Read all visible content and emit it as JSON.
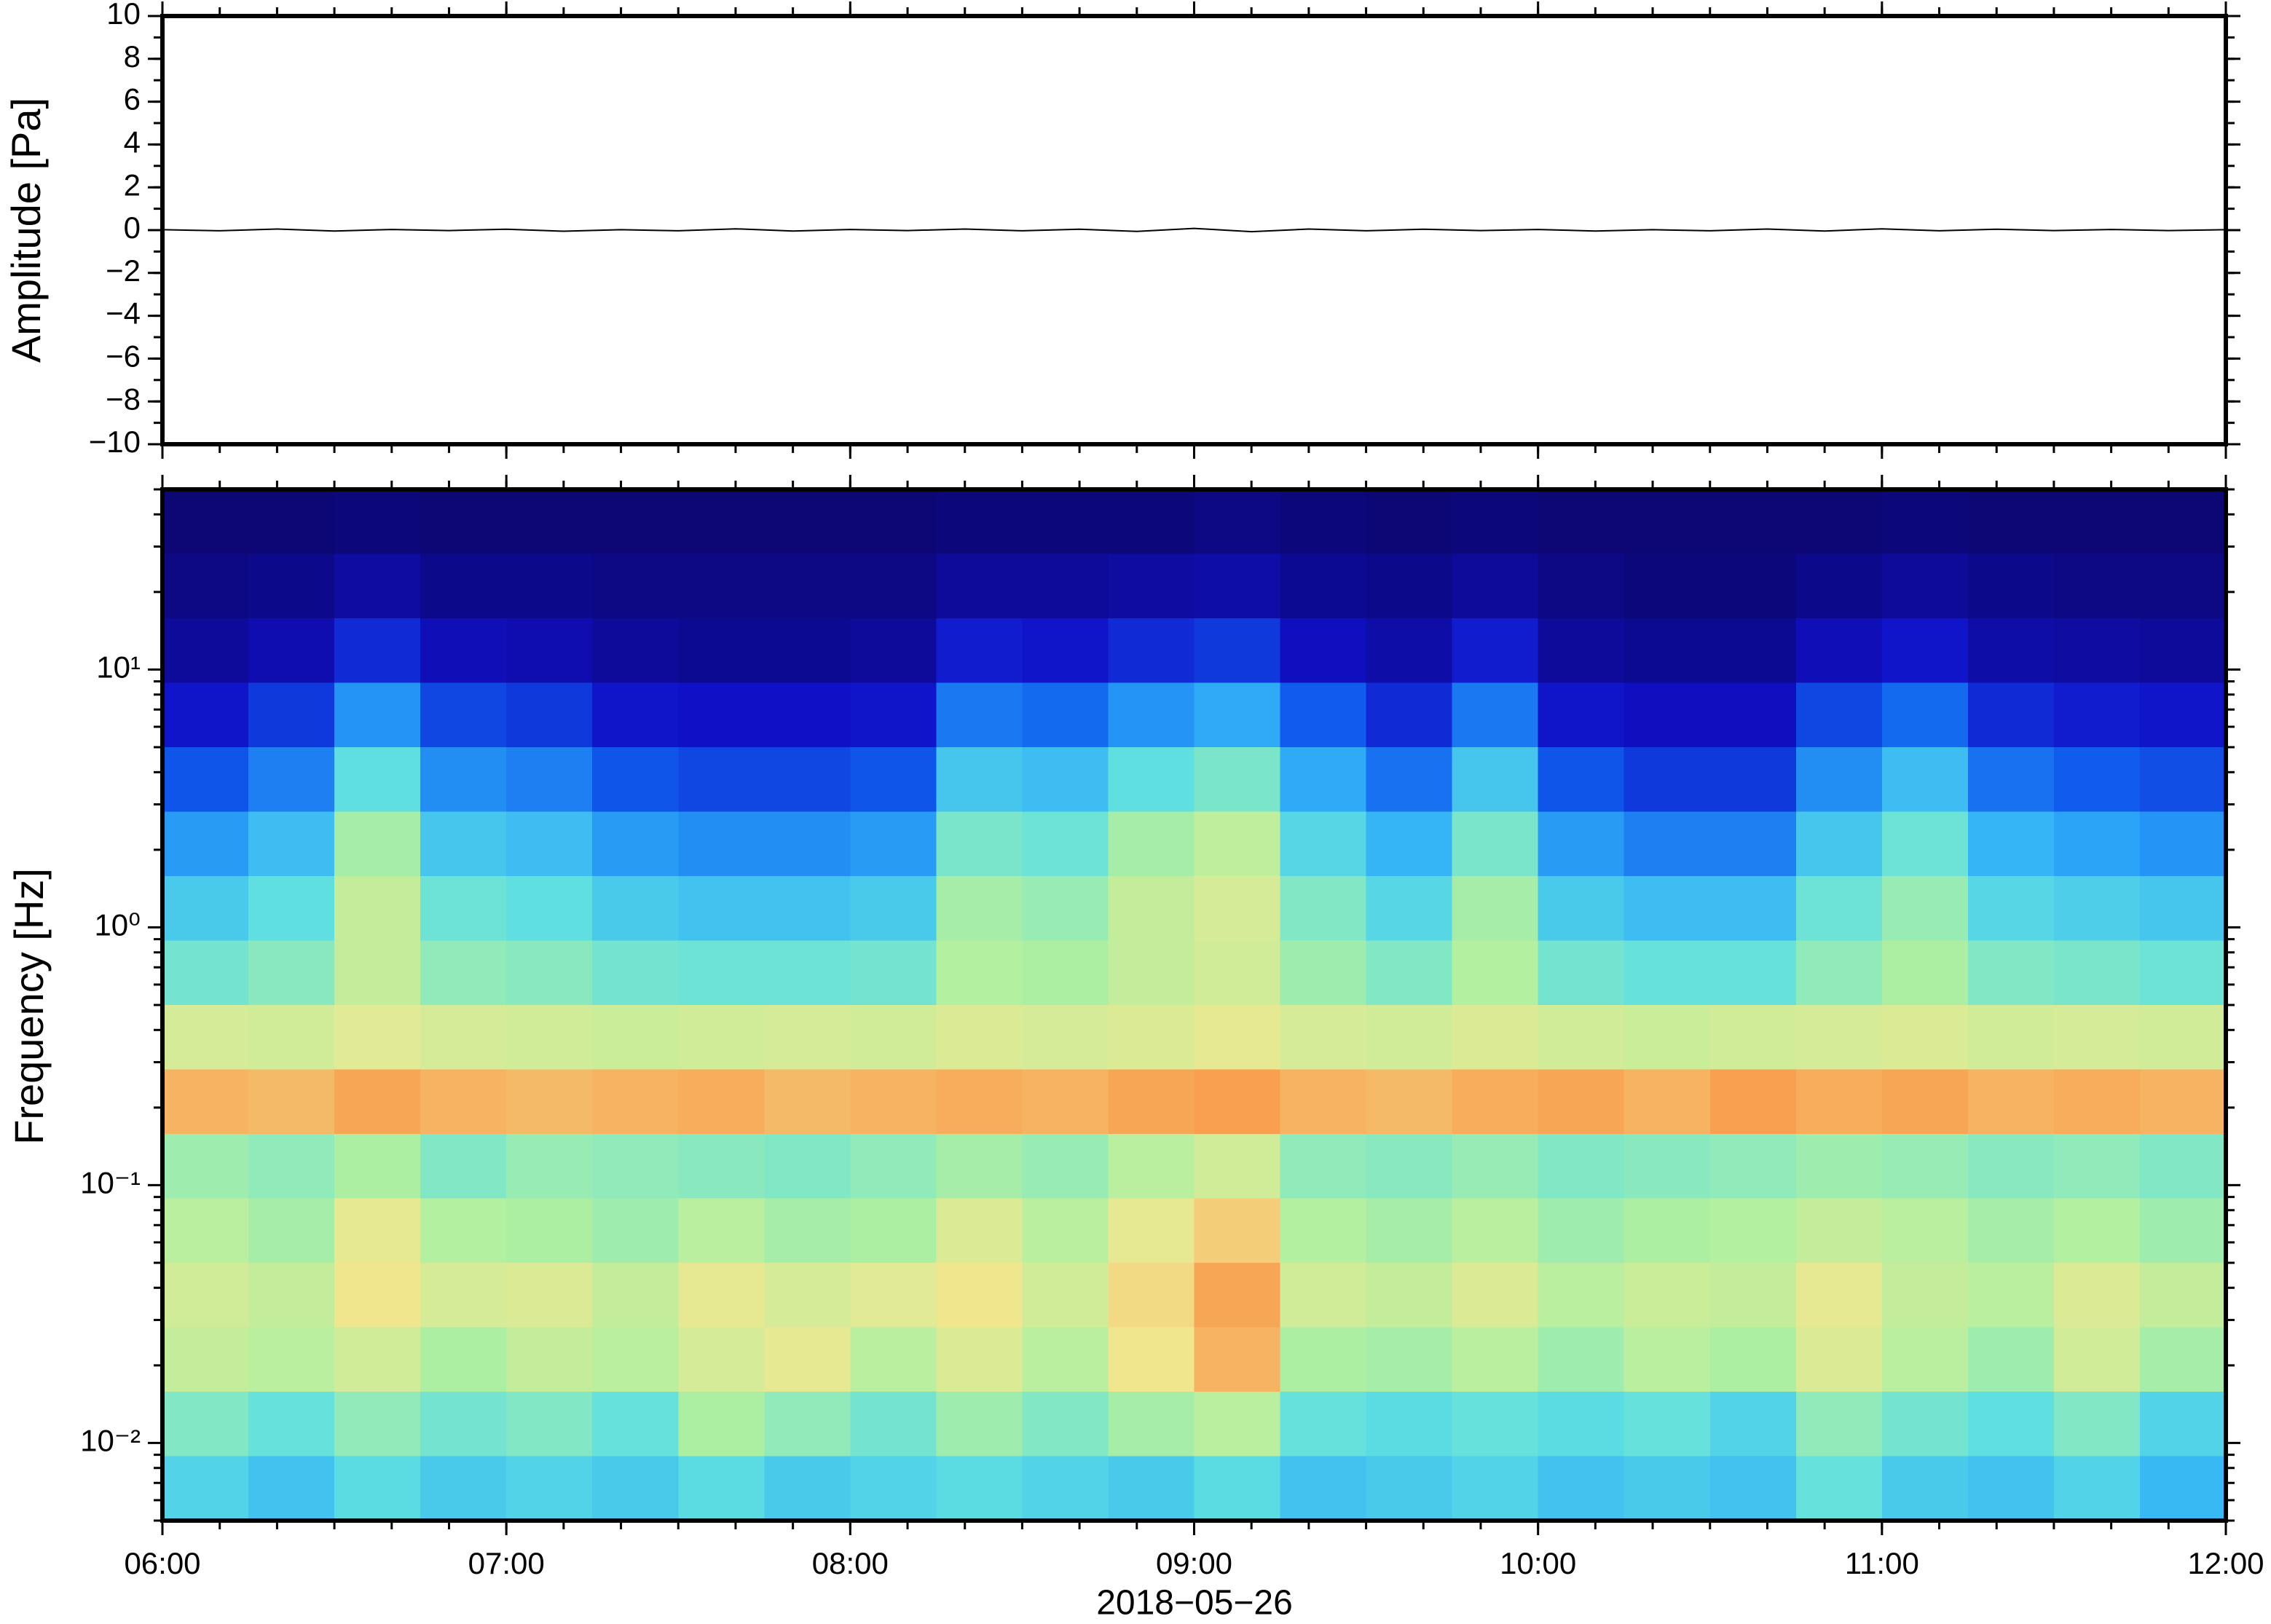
{
  "chart_data": [
    {
      "type": "line",
      "ylabel": "Amplitude [Pa]",
      "color": "#000000",
      "x": [
        "06:00",
        "06:10",
        "06:20",
        "06:30",
        "06:40",
        "06:50",
        "07:00",
        "07:10",
        "07:20",
        "07:30",
        "07:40",
        "07:50",
        "08:00",
        "08:10",
        "08:20",
        "08:30",
        "08:40",
        "08:50",
        "09:00",
        "09:10",
        "09:20",
        "09:30",
        "09:40",
        "09:50",
        "10:00",
        "10:10",
        "10:20",
        "10:30",
        "10:40",
        "10:50",
        "11:00",
        "11:10",
        "11:20",
        "11:30",
        "11:40",
        "11:50",
        "12:00"
      ],
      "values": [
        0.02,
        -0.03,
        0.05,
        -0.04,
        0.03,
        -0.02,
        0.04,
        -0.05,
        0.02,
        -0.03,
        0.06,
        -0.04,
        0.03,
        -0.02,
        0.05,
        -0.03,
        0.04,
        -0.06,
        0.08,
        -0.07,
        0.05,
        -0.03,
        0.04,
        -0.02,
        0.03,
        -0.04,
        0.02,
        -0.03,
        0.05,
        -0.04,
        0.06,
        -0.03,
        0.04,
        -0.02,
        0.03,
        -0.02,
        0.02
      ],
      "xlim": [
        "06:00",
        "12:00"
      ],
      "ylim": [
        -10,
        10
      ],
      "yticks": [
        {
          "value": -10,
          "label": "−10"
        },
        {
          "value": -8,
          "label": "−8"
        },
        {
          "value": -6,
          "label": "−6"
        },
        {
          "value": -4,
          "label": "−4"
        },
        {
          "value": -2,
          "label": "−2"
        },
        0,
        2,
        4,
        6,
        8,
        10
      ]
    },
    {
      "type": "heatmap",
      "ylabel": "Frequency [Hz]",
      "xlabel": "2018−05−26",
      "log_y": true,
      "colormap": [
        "#0c0775",
        "#1010c8",
        "#1060ee",
        "#30b0f8",
        "#60e0e0",
        "#b0f0a0",
        "#f0e890",
        "#f8a050"
      ],
      "x": [
        "06:00",
        "06:15",
        "06:30",
        "06:45",
        "07:00",
        "07:15",
        "07:30",
        "07:45",
        "08:00",
        "08:15",
        "08:30",
        "08:45",
        "09:00",
        "09:15",
        "09:30",
        "09:45",
        "10:00",
        "10:15",
        "10:30",
        "10:45",
        "11:00",
        "11:15",
        "11:30",
        "11:45"
      ],
      "y": [
        0.00668,
        0.0119,
        0.0211,
        0.0376,
        0.0668,
        0.119,
        0.211,
        0.376,
        0.668,
        1.19,
        2.11,
        3.76,
        6.68,
        11.9,
        21.1,
        37.6
      ],
      "values": [
        [
          42,
          38,
          44,
          40,
          42,
          40,
          44,
          40,
          42,
          44,
          42,
          40,
          44,
          38,
          40,
          42,
          38,
          40,
          38,
          46,
          40,
          38,
          42,
          36
        ],
        [
          50,
          46,
          52,
          48,
          50,
          46,
          56,
          52,
          48,
          54,
          50,
          55,
          58,
          46,
          44,
          46,
          44,
          46,
          42,
          52,
          48,
          45,
          50,
          42
        ],
        [
          60,
          58,
          62,
          56,
          60,
          58,
          63,
          66,
          58,
          64,
          58,
          68,
          76,
          56,
          55,
          58,
          54,
          58,
          56,
          64,
          58,
          54,
          62,
          55
        ],
        [
          62,
          60,
          68,
          63,
          64,
          60,
          66,
          63,
          65,
          68,
          62,
          70,
          78,
          62,
          60,
          64,
          58,
          61,
          60,
          66,
          60,
          58,
          64,
          60
        ],
        [
          58,
          55,
          66,
          57,
          56,
          54,
          58,
          55,
          56,
          64,
          58,
          66,
          72,
          57,
          55,
          58,
          54,
          56,
          57,
          60,
          58,
          55,
          57,
          54
        ],
        [
          54,
          52,
          56,
          50,
          53,
          52,
          51,
          50,
          52,
          55,
          53,
          58,
          62,
          52,
          51,
          53,
          50,
          51,
          52,
          54,
          53,
          51,
          52,
          50
        ],
        [
          76,
          75,
          78,
          76,
          75,
          76,
          77,
          75,
          76,
          77,
          76,
          78,
          79,
          76,
          75,
          77,
          78,
          76,
          79,
          77,
          78,
          76,
          77,
          76
        ],
        [
          63,
          62,
          65,
          63,
          62,
          61,
          62,
          63,
          62,
          64,
          63,
          64,
          66,
          63,
          62,
          64,
          62,
          61,
          62,
          63,
          64,
          62,
          63,
          62
        ],
        [
          48,
          51,
          60,
          52,
          51,
          48,
          47,
          47,
          48,
          57,
          56,
          60,
          62,
          54,
          50,
          57,
          48,
          46,
          46,
          52,
          56,
          50,
          49,
          47
        ],
        [
          40,
          45,
          60,
          47,
          45,
          40,
          38,
          38,
          40,
          55,
          53,
          60,
          63,
          50,
          43,
          55,
          40,
          37,
          37,
          47,
          53,
          43,
          41,
          39
        ],
        [
          31,
          37,
          55,
          39,
          37,
          31,
          29,
          29,
          31,
          49,
          47,
          55,
          59,
          43,
          35,
          49,
          31,
          27,
          27,
          39,
          47,
          35,
          32,
          30
        ],
        [
          21,
          27,
          45,
          29,
          27,
          21,
          19,
          19,
          21,
          39,
          37,
          45,
          49,
          33,
          25,
          39,
          21,
          17,
          17,
          29,
          37,
          25,
          22,
          20
        ],
        [
          12,
          17,
          30,
          19,
          17,
          12,
          11,
          11,
          12,
          26,
          24,
          30,
          33,
          22,
          15,
          26,
          12,
          10,
          10,
          19,
          24,
          15,
          13,
          12
        ],
        [
          5,
          8,
          15,
          9,
          8,
          5,
          4,
          4,
          5,
          13,
          12,
          15,
          17,
          10,
          7,
          13,
          5,
          4,
          4,
          9,
          12,
          7,
          6,
          5
        ],
        [
          2,
          3,
          6,
          3,
          3,
          2,
          2,
          2,
          2,
          5,
          5,
          6,
          7,
          4,
          3,
          5,
          2,
          1,
          1,
          3,
          5,
          3,
          2,
          2
        ],
        [
          0,
          0,
          1,
          0,
          0,
          0,
          0,
          0,
          0,
          1,
          1,
          1,
          2,
          1,
          0,
          1,
          0,
          0,
          0,
          0,
          1,
          0,
          0,
          0
        ]
      ],
      "xlim": [
        "06:00",
        "12:00"
      ],
      "xticks": [
        "06:00",
        "07:00",
        "08:00",
        "09:00",
        "10:00",
        "11:00",
        "12:00"
      ],
      "ylim": [
        0.005,
        50
      ],
      "yticks": [
        {
          "value": 0.01,
          "label": "10⁻²"
        },
        {
          "value": 0.1,
          "label": "10⁻¹"
        },
        {
          "value": 1,
          "label": "10⁰"
        },
        {
          "value": 10,
          "label": "10¹"
        }
      ]
    }
  ]
}
